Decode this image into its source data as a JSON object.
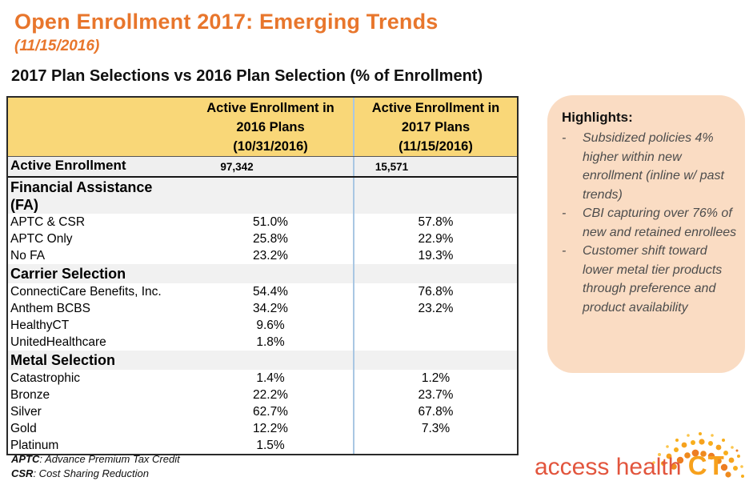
{
  "slide": {
    "title": "Open Enrollment 2017: Emerging Trends",
    "subtitle": "(11/15/2016)",
    "section_heading": "2017 Plan Selections vs 2016 Plan Selection (% of Enrollment)"
  },
  "table": {
    "header_2016": "Active Enrollment in\n2016 Plans\n(10/31/2016)",
    "header_2017": "Active Enrollment in\n2017 Plans\n(11/15/2016)",
    "rows": [
      {
        "type": "total",
        "label": "Active Enrollment",
        "v2016": "97,342",
        "v2017": "15,571"
      },
      {
        "type": "section",
        "label": "Financial Assistance\n(FA)",
        "v2016": "",
        "v2017": ""
      },
      {
        "type": "data",
        "label": "APTC & CSR",
        "v2016": "51.0%",
        "v2017": "57.8%"
      },
      {
        "type": "data",
        "label": "APTC Only",
        "v2016": "25.8%",
        "v2017": "22.9%"
      },
      {
        "type": "data",
        "label": "No FA",
        "v2016": "23.2%",
        "v2017": "19.3%"
      },
      {
        "type": "section",
        "label": "Carrier Selection",
        "v2016": "",
        "v2017": ""
      },
      {
        "type": "data",
        "label": "ConnectiCare Benefits, Inc.",
        "v2016": "54.4%",
        "v2017": "76.8%"
      },
      {
        "type": "data",
        "label": "Anthem BCBS",
        "v2016": "34.2%",
        "v2017": "23.2%"
      },
      {
        "type": "data",
        "label": "HealthyCT",
        "v2016": "9.6%",
        "v2017": ""
      },
      {
        "type": "data",
        "label": "UnitedHealthcare",
        "v2016": "1.8%",
        "v2017": ""
      },
      {
        "type": "section",
        "label": "Metal Selection",
        "v2016": "",
        "v2017": ""
      },
      {
        "type": "data",
        "label": "Catastrophic",
        "v2016": "1.4%",
        "v2017": "1.2%"
      },
      {
        "type": "data",
        "label": "Bronze",
        "v2016": "22.2%",
        "v2017": "23.7%"
      },
      {
        "type": "data",
        "label": "Silver",
        "v2016": "62.7%",
        "v2017": "67.8%"
      },
      {
        "type": "data",
        "label": "Gold",
        "v2016": "12.2%",
        "v2017": "7.3%"
      },
      {
        "type": "data",
        "label": "Platinum",
        "v2016": "1.5%",
        "v2017": ""
      }
    ]
  },
  "footnotes": [
    {
      "term": "APTC",
      "definition": ": Advance Premium Tax Credit"
    },
    {
      "term": "CSR",
      "definition": ": Cost Sharing Reduction"
    }
  ],
  "highlights": {
    "title": "Highlights:",
    "items": [
      "Subsidized policies 4% higher within new enrollment (inline w/ past trends)",
      "CBI capturing over 76% of new and retained enrollees",
      "Customer shift toward lower metal tier products through preference and product availability"
    ]
  },
  "logo": {
    "text1": "access health ",
    "text2": "CT"
  },
  "colors": {
    "accent_orange": "#E8762C",
    "table_header_yellow": "#F9D778",
    "column_divider_blue": "#A9C7E3",
    "row_gray": "#EFEFEF",
    "highlights_peach": "#FADCC3",
    "logo_red_orange": "#E2553D",
    "logo_yellow_orange": "#F7A11C"
  }
}
